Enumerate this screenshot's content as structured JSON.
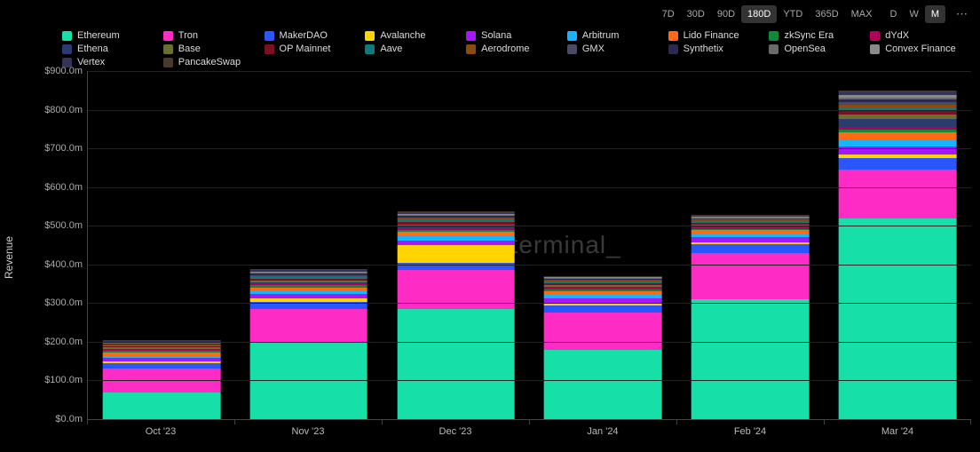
{
  "toolbar": {
    "ranges": [
      "7D",
      "30D",
      "90D",
      "180D",
      "YTD",
      "365D",
      "MAX"
    ],
    "range_selected": "180D",
    "intervals": [
      "D",
      "W",
      "M"
    ],
    "interval_selected": "M"
  },
  "watermark": "token terminal_",
  "chart": {
    "type": "stacked-bar",
    "ylabel": "Revenue",
    "ylim": [
      0,
      900
    ],
    "ytick_step": 100,
    "ytick_prefix": "$",
    "ytick_suffix": ".0m",
    "background_color": "#000000",
    "grid_color": "#222222",
    "axis_color": "#444444",
    "tick_font_size": 11,
    "bar_width_pct": 80,
    "categories": [
      "Oct '23",
      "Nov '23",
      "Dec '23",
      "Jan '24",
      "Feb '24",
      "Mar '24"
    ],
    "series": [
      {
        "name": "Ethereum",
        "color": "#16e0a8",
        "values": [
          70,
          200,
          285,
          180,
          310,
          520
        ]
      },
      {
        "name": "Tron",
        "color": "#ff2bc5",
        "values": [
          60,
          85,
          100,
          95,
          120,
          125
        ]
      },
      {
        "name": "MakerDAO",
        "color": "#2a56ff",
        "values": [
          15,
          18,
          20,
          18,
          22,
          30
        ]
      },
      {
        "name": "Avalanche",
        "color": "#ffd400",
        "values": [
          5,
          10,
          45,
          8,
          6,
          10
        ]
      },
      {
        "name": "Solana",
        "color": "#a616ff",
        "values": [
          8,
          10,
          12,
          12,
          12,
          20
        ]
      },
      {
        "name": "Arbitrum",
        "color": "#17b4ff",
        "values": [
          6,
          8,
          10,
          8,
          8,
          15
        ]
      },
      {
        "name": "Lido Finance",
        "color": "#ff6a13",
        "values": [
          8,
          10,
          12,
          10,
          10,
          22
        ]
      },
      {
        "name": "zkSync Era",
        "color": "#0e8a3a",
        "values": [
          4,
          5,
          5,
          4,
          4,
          6
        ]
      },
      {
        "name": "dYdX",
        "color": "#b30059",
        "values": [
          4,
          5,
          5,
          4,
          4,
          8
        ]
      },
      {
        "name": "Ethena",
        "color": "#2c3b6e",
        "values": [
          2,
          3,
          4,
          3,
          3,
          20
        ]
      },
      {
        "name": "Base",
        "color": "#6b6e32",
        "values": [
          3,
          5,
          6,
          5,
          5,
          12
        ]
      },
      {
        "name": "OP Mainnet",
        "color": "#7a1020",
        "values": [
          3,
          4,
          5,
          4,
          4,
          8
        ]
      },
      {
        "name": "Aave",
        "color": "#0b7b7b",
        "values": [
          2,
          4,
          5,
          4,
          4,
          8
        ]
      },
      {
        "name": "Aerodrome",
        "color": "#8a4a10",
        "values": [
          2,
          3,
          4,
          3,
          3,
          10
        ]
      },
      {
        "name": "GMX",
        "color": "#4a4a66",
        "values": [
          2,
          3,
          4,
          3,
          3,
          6
        ]
      },
      {
        "name": "Synthetix",
        "color": "#2a2a50",
        "values": [
          2,
          3,
          3,
          2,
          2,
          6
        ]
      },
      {
        "name": "OpenSea",
        "color": "#6a6a6a",
        "values": [
          2,
          3,
          3,
          2,
          2,
          6
        ]
      },
      {
        "name": "Convex Finance",
        "color": "#8a8a8a",
        "values": [
          2,
          3,
          3,
          2,
          2,
          6
        ]
      },
      {
        "name": "Vertex",
        "color": "#34345a",
        "values": [
          2,
          3,
          3,
          2,
          2,
          6
        ]
      },
      {
        "name": "PancakeSwap",
        "color": "#4a3a2a",
        "values": [
          2,
          3,
          3,
          2,
          2,
          6
        ]
      }
    ]
  }
}
